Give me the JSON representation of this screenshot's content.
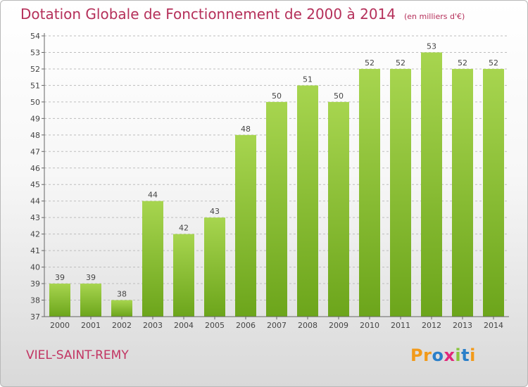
{
  "title": "Dotation Globale de Fonctionnement de 2000 à 2014",
  "unit_note": "(en milliers d'€)",
  "commune": "VIEL-SAINT-REMY",
  "logo": {
    "text": "Proxiti",
    "letter_colors": [
      "#f29a1a",
      "#f29a1a",
      "#2a7fc9",
      "#e1287a",
      "#8ac53f",
      "#2a7fc9",
      "#f29a1a"
    ]
  },
  "colors": {
    "bar_light": "#a7d54f",
    "bar_dark": "#6ca51b",
    "grid": "#bdbdbd",
    "axis": "#666666",
    "text": "#444444",
    "title": "#b5305a"
  },
  "chart_data": {
    "type": "bar",
    "title": "Dotation Globale de Fonctionnement de 2000 à 2014",
    "subtitle": "(en milliers d'€)",
    "xlabel": "",
    "ylabel": "",
    "categories": [
      "2000",
      "2001",
      "2002",
      "2003",
      "2004",
      "2005",
      "2006",
      "2007",
      "2008",
      "2009",
      "2010",
      "2011",
      "2012",
      "2013",
      "2014"
    ],
    "values": [
      39,
      39,
      38,
      44,
      42,
      43,
      48,
      50,
      51,
      50,
      52,
      52,
      53,
      52,
      52
    ],
    "ylim": [
      37,
      54
    ],
    "yticks": [
      37,
      38,
      39,
      40,
      41,
      42,
      43,
      44,
      45,
      46,
      47,
      48,
      49,
      50,
      51,
      52,
      53,
      54
    ],
    "grid": true,
    "data_labels": true
  }
}
